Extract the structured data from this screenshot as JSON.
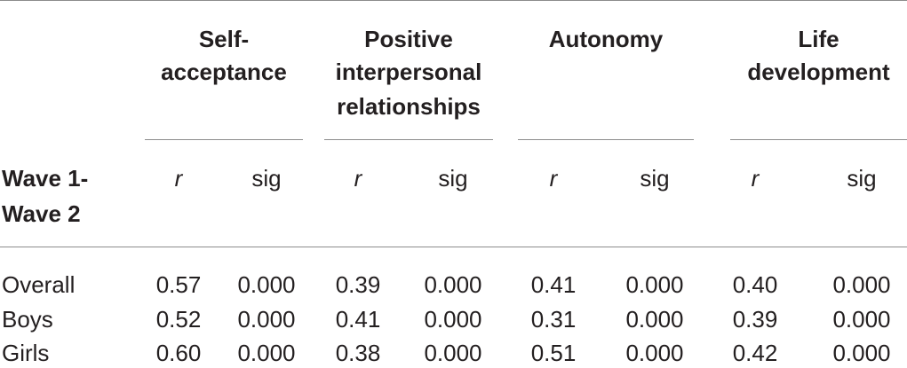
{
  "table": {
    "groups": [
      {
        "line1": "Self-",
        "line2": "acceptance",
        "line3": ""
      },
      {
        "line1": "Positive",
        "line2": "interpersonal",
        "line3": "relationships"
      },
      {
        "line1": "Autonomy",
        "line2": "",
        "line3": ""
      },
      {
        "line1": "Life",
        "line2": "development",
        "line3": ""
      }
    ],
    "row_header_line1": "Wave 1-",
    "row_header_line2": "Wave 2",
    "sub_r": "r",
    "sub_sig": "sig",
    "rows": [
      {
        "label": "Overall",
        "values": [
          "0.57",
          "0.000",
          "0.39",
          "0.000",
          "0.41",
          "0.000",
          "0.40",
          "0.000"
        ]
      },
      {
        "label": "Boys",
        "values": [
          "0.52",
          "0.000",
          "0.41",
          "0.000",
          "0.31",
          "0.000",
          "0.39",
          "0.000"
        ]
      },
      {
        "label": "Girls",
        "values": [
          "0.60",
          "0.000",
          "0.38",
          "0.000",
          "0.51",
          "0.000",
          "0.42",
          "0.000"
        ]
      }
    ]
  }
}
